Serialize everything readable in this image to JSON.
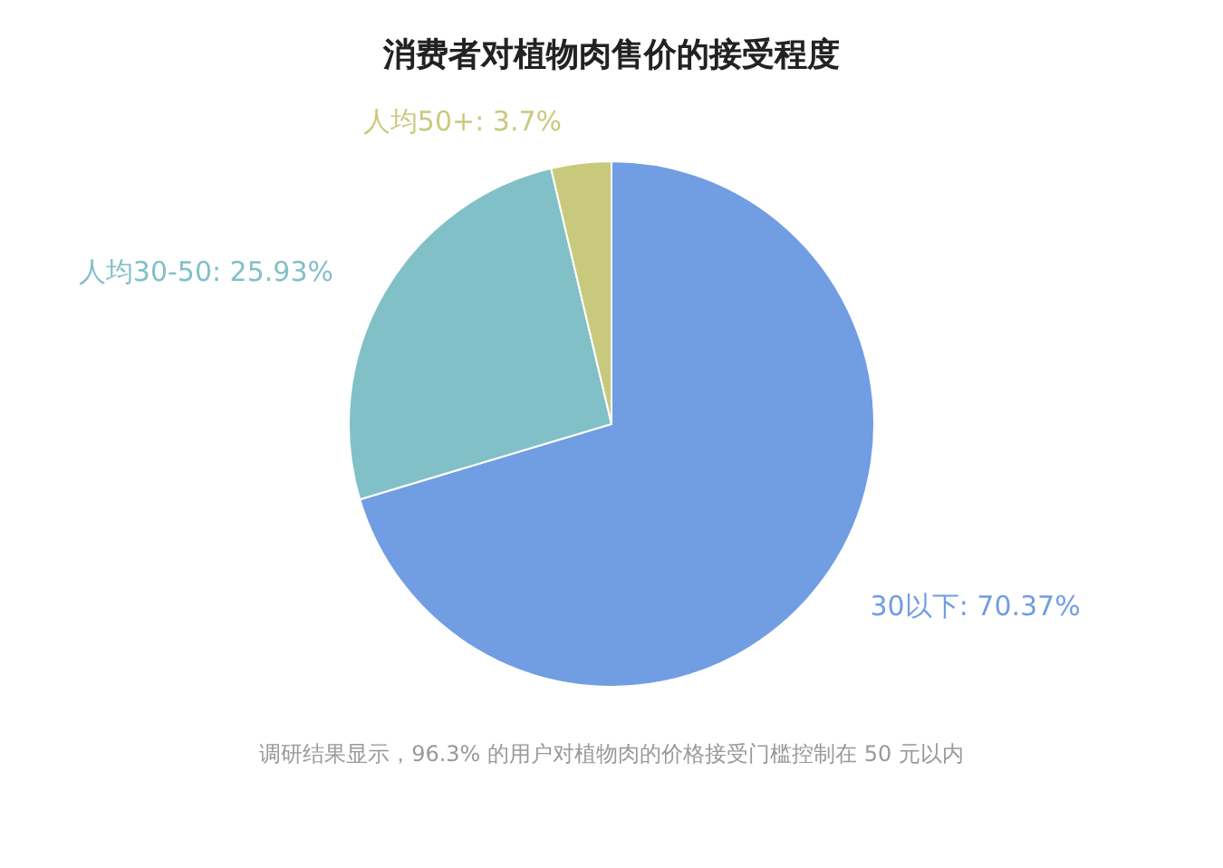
{
  "chart_data": {
    "type": "pie",
    "title": "消费者对植物肉售价的接受程度",
    "categories": [
      "30以下",
      "人均30-50",
      "人均50+"
    ],
    "values": [
      70.37,
      25.93,
      3.7
    ],
    "colors": [
      "#719de2",
      "#82c0c7",
      "#c9c97e"
    ],
    "value_labels": [
      ": 70.37%",
      ": 25.93%",
      ": 3.7%"
    ],
    "legend": false,
    "annotations": [
      "调研结果显示，96.3% 的用户对植物肉的价格接受门槛控制在 50 元以内"
    ]
  }
}
